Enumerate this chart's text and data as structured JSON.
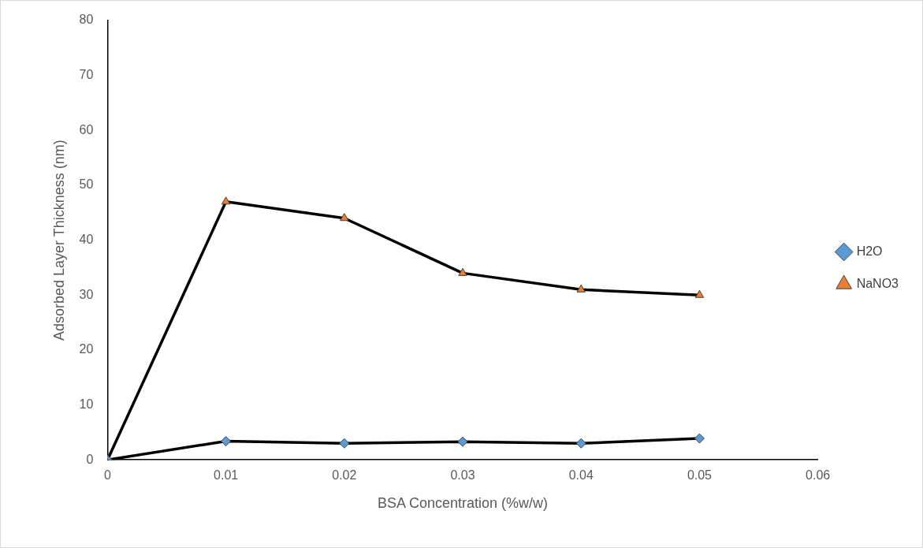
{
  "chart_data": {
    "type": "line",
    "xlabel": "BSA Concentration (%w/w)",
    "ylabel": "Adsorbed Layer Thickness (nm)",
    "x": [
      0,
      0.01,
      0.02,
      0.03,
      0.04,
      0.05
    ],
    "series": [
      {
        "name": "H2O",
        "color": "#5b9bd5",
        "marker": "diamond",
        "values": [
          0,
          3.4,
          3.0,
          3.3,
          3.0,
          3.9
        ]
      },
      {
        "name": "NaNO3",
        "color": "#ed7d31",
        "marker": "triangle",
        "values": [
          0,
          47,
          44,
          34,
          31,
          30
        ]
      }
    ],
    "xlim": [
      0,
      0.06
    ],
    "xticks": [
      0,
      0.01,
      0.02,
      0.03,
      0.04,
      0.05,
      0.06
    ],
    "ylim": [
      0,
      80
    ],
    "yticks": [
      0,
      10,
      20,
      30,
      40,
      50,
      60,
      70,
      80
    ],
    "grid": false,
    "legend": "right",
    "line_style": "solid"
  }
}
